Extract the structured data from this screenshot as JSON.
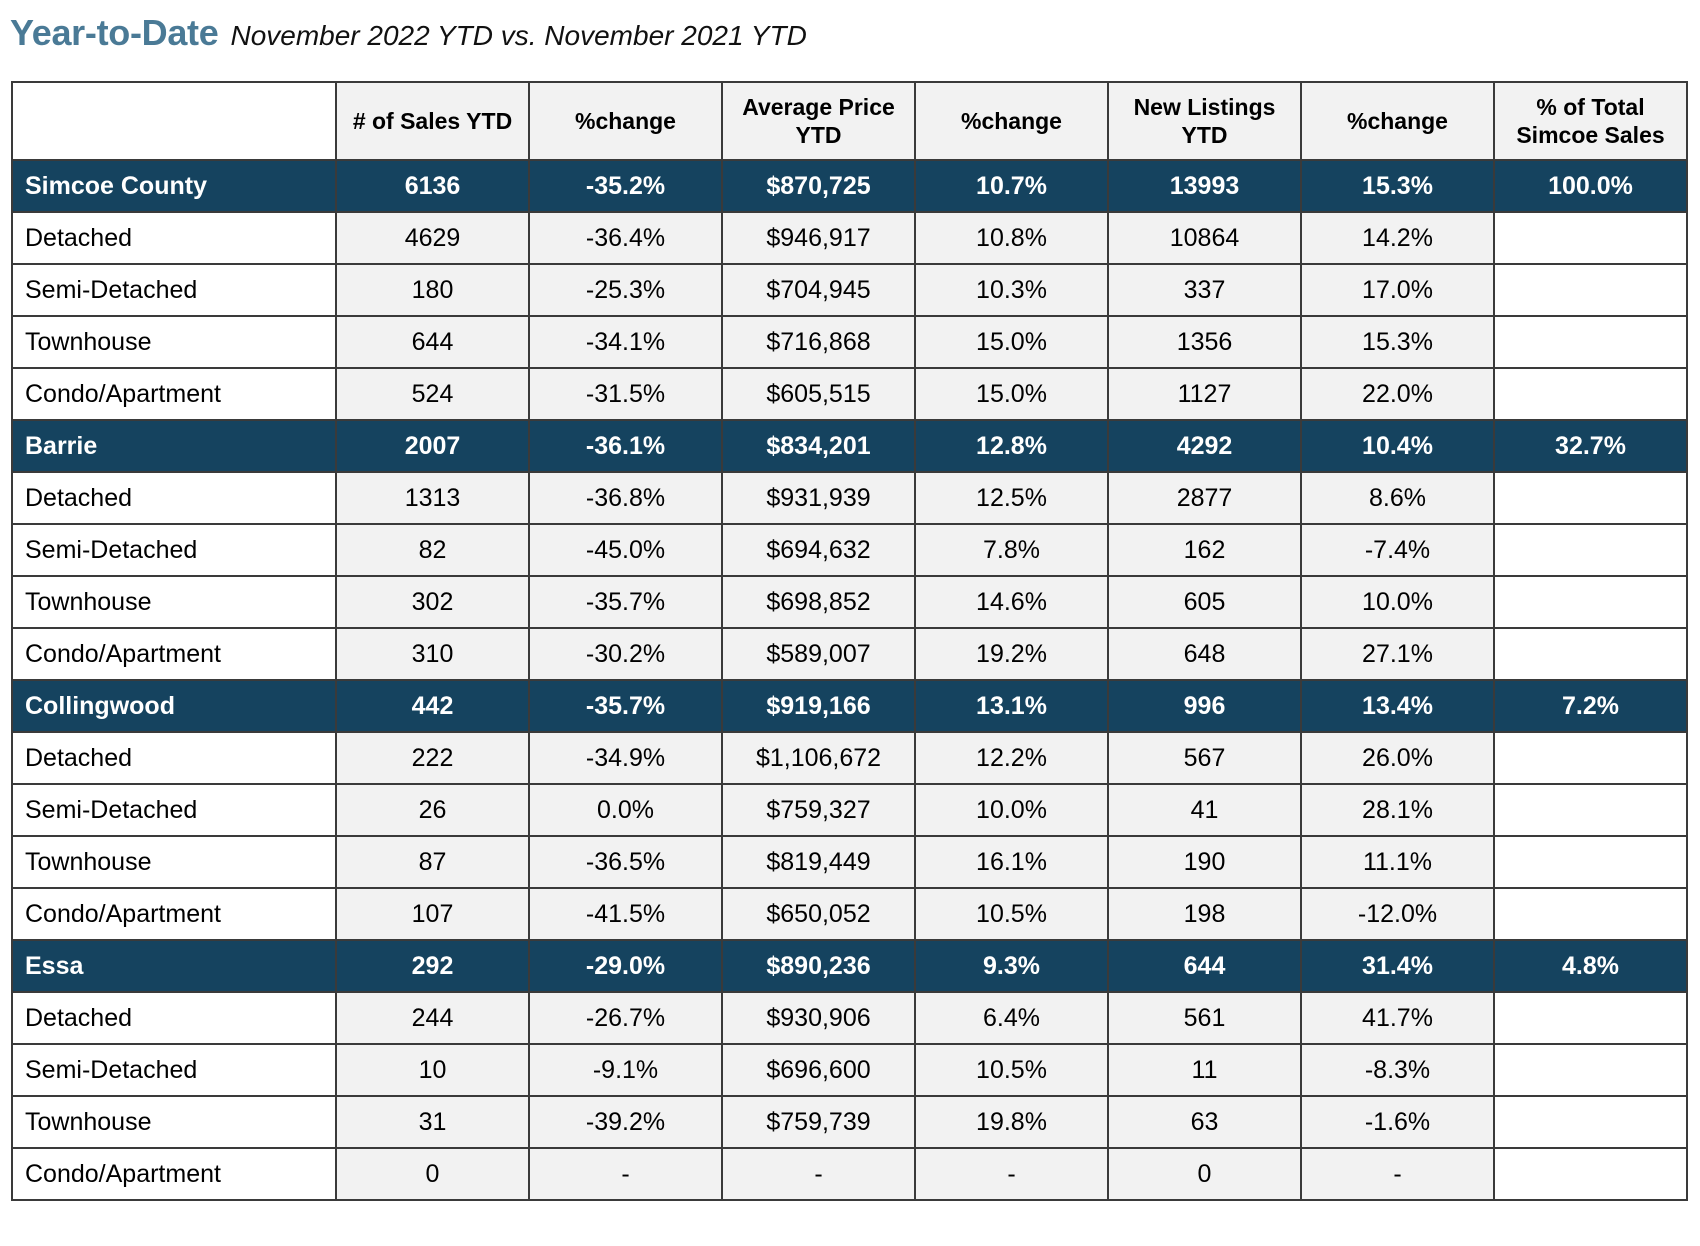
{
  "header": {
    "title": "Year-to-Date",
    "subtitle": "November 2022 YTD vs. November 2021 YTD"
  },
  "table": {
    "columns": [
      "",
      "# of Sales YTD",
      "%change",
      "Average Price YTD",
      "%change",
      "New Listings YTD",
      "%change",
      "% of Total Simcoe Sales"
    ],
    "rows": [
      {
        "type": "region",
        "cells": [
          "Simcoe County",
          "6136",
          "-35.2%",
          "$870,725",
          "10.7%",
          "13993",
          "15.3%",
          "100.0%"
        ]
      },
      {
        "type": "sub",
        "cells": [
          "Detached",
          "4629",
          "-36.4%",
          "$946,917",
          "10.8%",
          "10864",
          "14.2%",
          ""
        ]
      },
      {
        "type": "sub",
        "cells": [
          "Semi-Detached",
          "180",
          "-25.3%",
          "$704,945",
          "10.3%",
          "337",
          "17.0%",
          ""
        ]
      },
      {
        "type": "sub",
        "cells": [
          "Townhouse",
          "644",
          "-34.1%",
          "$716,868",
          "15.0%",
          "1356",
          "15.3%",
          ""
        ]
      },
      {
        "type": "sub",
        "cells": [
          "Condo/Apartment",
          "524",
          "-31.5%",
          "$605,515",
          "15.0%",
          "1127",
          "22.0%",
          ""
        ]
      },
      {
        "type": "region",
        "cells": [
          "Barrie",
          "2007",
          "-36.1%",
          "$834,201",
          "12.8%",
          "4292",
          "10.4%",
          "32.7%"
        ]
      },
      {
        "type": "sub",
        "cells": [
          "Detached",
          "1313",
          "-36.8%",
          "$931,939",
          "12.5%",
          "2877",
          "8.6%",
          ""
        ]
      },
      {
        "type": "sub",
        "cells": [
          "Semi-Detached",
          "82",
          "-45.0%",
          "$694,632",
          "7.8%",
          "162",
          "-7.4%",
          ""
        ]
      },
      {
        "type": "sub",
        "cells": [
          "Townhouse",
          "302",
          "-35.7%",
          "$698,852",
          "14.6%",
          "605",
          "10.0%",
          ""
        ]
      },
      {
        "type": "sub",
        "cells": [
          "Condo/Apartment",
          "310",
          "-30.2%",
          "$589,007",
          "19.2%",
          "648",
          "27.1%",
          ""
        ]
      },
      {
        "type": "region",
        "cells": [
          "Collingwood",
          "442",
          "-35.7%",
          "$919,166",
          "13.1%",
          "996",
          "13.4%",
          "7.2%"
        ]
      },
      {
        "type": "sub",
        "cells": [
          "Detached",
          "222",
          "-34.9%",
          "$1,106,672",
          "12.2%",
          "567",
          "26.0%",
          ""
        ]
      },
      {
        "type": "sub",
        "cells": [
          "Semi-Detached",
          "26",
          "0.0%",
          "$759,327",
          "10.0%",
          "41",
          "28.1%",
          ""
        ]
      },
      {
        "type": "sub",
        "cells": [
          "Townhouse",
          "87",
          "-36.5%",
          "$819,449",
          "16.1%",
          "190",
          "11.1%",
          ""
        ]
      },
      {
        "type": "sub",
        "cells": [
          "Condo/Apartment",
          "107",
          "-41.5%",
          "$650,052",
          "10.5%",
          "198",
          "-12.0%",
          ""
        ]
      },
      {
        "type": "region",
        "cells": [
          "Essa",
          "292",
          "-29.0%",
          "$890,236",
          "9.3%",
          "644",
          "31.4%",
          "4.8%"
        ]
      },
      {
        "type": "sub",
        "cells": [
          "Detached",
          "244",
          "-26.7%",
          "$930,906",
          "6.4%",
          "561",
          "41.7%",
          ""
        ]
      },
      {
        "type": "sub",
        "cells": [
          "Semi-Detached",
          "10",
          "-9.1%",
          "$696,600",
          "10.5%",
          "11",
          "-8.3%",
          ""
        ]
      },
      {
        "type": "sub",
        "cells": [
          "Townhouse",
          "31",
          "-39.2%",
          "$759,739",
          "19.8%",
          "63",
          "-1.6%",
          ""
        ]
      },
      {
        "type": "sub",
        "cells": [
          "Condo/Apartment",
          "0",
          "-",
          "-",
          "-",
          "0",
          "-",
          ""
        ]
      }
    ]
  },
  "colors": {
    "title": "#4a7a96",
    "region_row_bg": "#15435f",
    "region_row_text": "#ffffff",
    "shade_cell_bg": "#f2f2f2",
    "border": "#3a3a3a"
  }
}
